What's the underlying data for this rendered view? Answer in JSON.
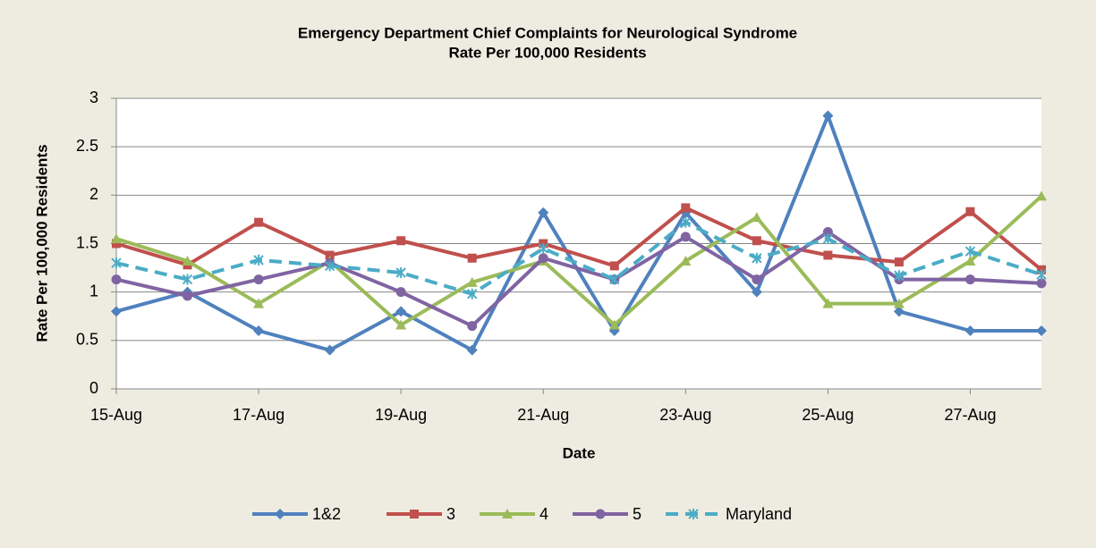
{
  "chart_data": {
    "type": "line",
    "title": "Emergency Department Chief Complaints for Neurological Syndrome",
    "subtitle": "Rate Per 100,000 Residents",
    "x_label": "Date",
    "y_label": "Rate Per 100,000 Residents",
    "categories": [
      "15-Aug",
      null,
      "17-Aug",
      null,
      "19-Aug",
      null,
      "21-Aug",
      null,
      "23-Aug",
      null,
      "25-Aug",
      null,
      "27-Aug",
      null
    ],
    "series": [
      {
        "name": "1&2",
        "color": "#4F81BD",
        "marker": "diamond",
        "values": [
          0.8,
          1.0,
          0.6,
          0.4,
          0.8,
          0.4,
          1.82,
          0.6,
          1.82,
          1.0,
          2.82,
          0.8,
          0.6,
          0.6
        ]
      },
      {
        "name": "3",
        "color": "#C0504D",
        "marker": "square",
        "values": [
          1.5,
          1.28,
          1.72,
          1.38,
          1.53,
          1.35,
          1.5,
          1.27,
          1.87,
          1.53,
          1.38,
          1.31,
          1.83,
          1.23
        ]
      },
      {
        "name": "4",
        "color": "#9BBB59",
        "marker": "triangle",
        "values": [
          1.55,
          1.32,
          0.88,
          1.32,
          0.66,
          1.1,
          1.32,
          0.66,
          1.32,
          1.77,
          0.88,
          0.88,
          1.32,
          1.99
        ]
      },
      {
        "name": "5",
        "color": "#8064A2",
        "marker": "circle",
        "values": [
          1.13,
          0.96,
          1.13,
          1.3,
          1.0,
          0.65,
          1.35,
          1.13,
          1.57,
          1.13,
          1.62,
          1.13,
          1.13,
          1.09
        ]
      },
      {
        "name": "Maryland",
        "color": "#4BACC6",
        "marker": "x",
        "dashed": true,
        "values": [
          1.3,
          1.13,
          1.33,
          1.27,
          1.2,
          0.98,
          1.45,
          1.13,
          1.72,
          1.35,
          1.55,
          1.17,
          1.42,
          1.18
        ]
      }
    ],
    "ylim": [
      0,
      3
    ],
    "yticks": [
      0,
      0.5,
      1,
      1.5,
      2,
      2.5,
      3
    ],
    "grid": true,
    "legend": "bottom"
  }
}
